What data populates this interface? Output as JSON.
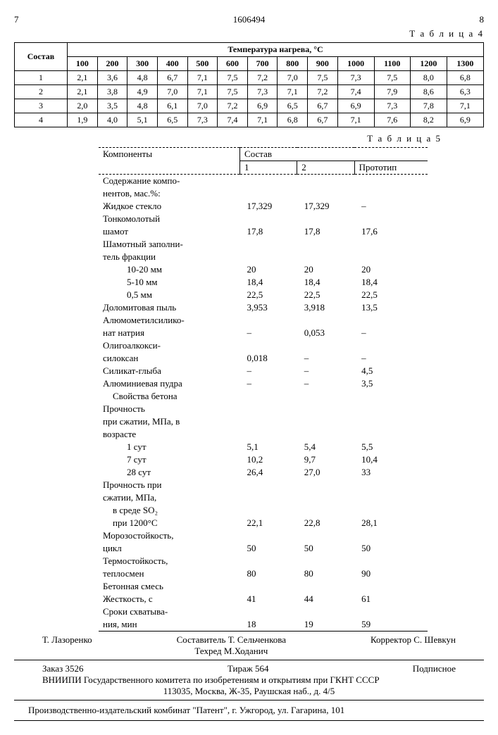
{
  "header": {
    "page_left": "7",
    "doc_number": "1606494",
    "page_right": "8"
  },
  "table4": {
    "label": "Т а б л и ц а 4",
    "row_header": "Состав",
    "col_group_header": "Температура нагрева, °С",
    "temps": [
      "100",
      "200",
      "300",
      "400",
      "500",
      "600",
      "700",
      "800",
      "900",
      "1000",
      "1100",
      "1200",
      "1300"
    ],
    "rows": [
      {
        "id": "1",
        "vals": [
          "2,1",
          "3,6",
          "4,8",
          "6,7",
          "7,1",
          "7,5",
          "7,2",
          "7,0",
          "7,5",
          "7,3",
          "7,5",
          "8,0",
          "6,8"
        ]
      },
      {
        "id": "2",
        "vals": [
          "2,1",
          "3,8",
          "4,9",
          "7,0",
          "7,1",
          "7,5",
          "7,3",
          "7,1",
          "7,2",
          "7,4",
          "7,9",
          "8,6",
          "6,3"
        ]
      },
      {
        "id": "3",
        "vals": [
          "2,0",
          "3,5",
          "4,8",
          "6,1",
          "7,0",
          "7,2",
          "6,9",
          "6,5",
          "6,7",
          "6,9",
          "7,3",
          "7,8",
          "7,1"
        ]
      },
      {
        "id": "4",
        "vals": [
          "1,9",
          "4,0",
          "5,1",
          "6,5",
          "7,3",
          "7,4",
          "7,1",
          "6,8",
          "6,7",
          "7,1",
          "7,6",
          "8,2",
          "6,9"
        ]
      }
    ]
  },
  "table5": {
    "label": "Т а б л и ц а 5",
    "head_components": "Компоненты",
    "head_sostav": "Состав",
    "head_cols": [
      "1",
      "2",
      "Прототип"
    ],
    "rows": [
      {
        "label": "Содержание компо-",
        "c": [
          "",
          "",
          ""
        ]
      },
      {
        "label": "нентов, мас.%:",
        "c": [
          "",
          "",
          ""
        ]
      },
      {
        "label": "Жидкое стекло",
        "c": [
          "17,329",
          "17,329",
          "–"
        ]
      },
      {
        "label": "Тонкомолотый",
        "c": [
          "",
          "",
          ""
        ]
      },
      {
        "label": "шамот",
        "c": [
          "17,8",
          "17,8",
          "17,6"
        ]
      },
      {
        "label": "Шамотный заполни-",
        "c": [
          "",
          "",
          ""
        ]
      },
      {
        "label": "тель фракции",
        "c": [
          "",
          "",
          ""
        ]
      },
      {
        "label": "10-20 мм",
        "indent": 2,
        "c": [
          "20",
          "20",
          "20"
        ]
      },
      {
        "label": "5-10 мм",
        "indent": 2,
        "c": [
          "18,4",
          "18,4",
          "18,4"
        ]
      },
      {
        "label": "0,5 мм",
        "indent": 2,
        "c": [
          "22,5",
          "22,5",
          "22,5"
        ]
      },
      {
        "label": "Доломитовая пыль",
        "c": [
          "3,953",
          "3,918",
          "13,5"
        ]
      },
      {
        "label": "Алюмометилсилико-",
        "c": [
          "",
          "",
          ""
        ]
      },
      {
        "label": "нат натрия",
        "c": [
          "–",
          "0,053",
          "–"
        ]
      },
      {
        "label": "Олигоалкокси-",
        "c": [
          "",
          "",
          ""
        ]
      },
      {
        "label": "силоксан",
        "c": [
          "0,018",
          "–",
          "–"
        ]
      },
      {
        "label": "Силикат-глыба",
        "c": [
          "–",
          "–",
          "4,5"
        ]
      },
      {
        "label": "Алюминиевая пудра",
        "c": [
          "–",
          "–",
          "3,5"
        ]
      },
      {
        "label": "Свойства бетона",
        "indent": 1,
        "c": [
          "",
          "",
          ""
        ]
      },
      {
        "label": "Прочность",
        "c": [
          "",
          "",
          ""
        ]
      },
      {
        "label": "при сжатии, МПа, в",
        "c": [
          "",
          "",
          ""
        ]
      },
      {
        "label": "возрасте",
        "c": [
          "",
          "",
          ""
        ]
      },
      {
        "label": "1 сут",
        "indent": 2,
        "c": [
          "5,1",
          "5,4",
          "5,5"
        ]
      },
      {
        "label": "7 сут",
        "indent": 2,
        "c": [
          "10,2",
          "9,7",
          "10,4"
        ]
      },
      {
        "label": "28 сут",
        "indent": 2,
        "c": [
          "26,4",
          "27,0",
          "33"
        ]
      },
      {
        "label": "Прочность при",
        "c": [
          "",
          "",
          ""
        ]
      },
      {
        "label": "сжатии, МПа,",
        "c": [
          "",
          "",
          ""
        ]
      },
      {
        "label": "в среде SO₂",
        "indent": 1,
        "c": [
          "",
          "",
          ""
        ]
      },
      {
        "label": "при 1200°С",
        "indent": 1,
        "c": [
          "22,1",
          "22,8",
          "28,1"
        ]
      },
      {
        "label": "Морозостойкость,",
        "c": [
          "",
          "",
          ""
        ]
      },
      {
        "label": "цикл",
        "c": [
          "50",
          "50",
          "50"
        ]
      },
      {
        "label": "Термостойкость,",
        "c": [
          "",
          "",
          ""
        ]
      },
      {
        "label": "теплосмен",
        "c": [
          "80",
          "80",
          "90"
        ]
      },
      {
        "label": "Бетонная смесь",
        "c": [
          "",
          "",
          ""
        ]
      },
      {
        "label": "Жесткость, с",
        "c": [
          "41",
          "44",
          "61"
        ]
      },
      {
        "label": "Сроки схватыва-",
        "c": [
          "",
          "",
          ""
        ]
      },
      {
        "label": "ния, мин",
        "c": [
          "18",
          "19",
          "59"
        ]
      }
    ]
  },
  "footer": {
    "redactor": "Т. Лазоренко",
    "compiler": "Составитель Т. Сельченкова",
    "techred": "Техред М.Ходанич",
    "corrector": "Корректор С. Шевкун",
    "order": "Заказ 3526",
    "circulation": "Тираж 564",
    "subscribe": "Подписное",
    "org": "ВНИИПИ Государственного комитета по изобретениям и открытиям при ГКНТ СССР",
    "address": "113035, Москва, Ж-35, Раушская наб., д. 4/5",
    "printer": "Производственно-издательский комбинат \"Патент\", г. Ужгород, ул. Гагарина, 101"
  }
}
